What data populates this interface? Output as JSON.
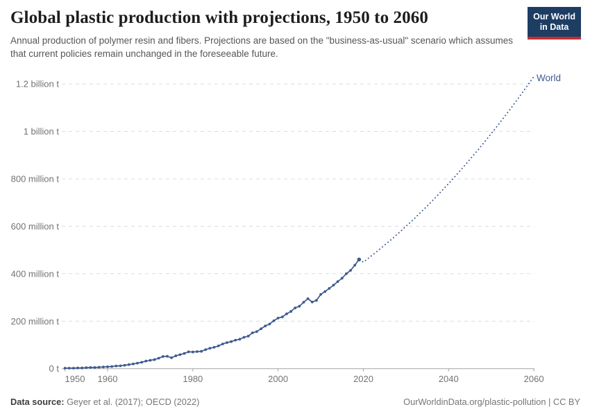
{
  "header": {
    "title": "Global plastic production with projections, 1950 to 2060",
    "subtitle": "Annual production of polymer resin and fibers. Projections are based on the \"business-as-usual\" scenario which assumes that current policies remain unchanged in the foreseeable future.",
    "logo_line1": "Our World",
    "logo_line2": "in Data"
  },
  "footer": {
    "source_label": "Data source:",
    "source_value": "Geyer et al. (2017); OECD (2022)",
    "url": "OurWorldinData.org/plastic-pollution",
    "separator": " | ",
    "license": "CC BY"
  },
  "colors": {
    "accent_blue": "#3d5a8e",
    "grid": "#dcdcdc",
    "axis": "#a3a3a3",
    "tick_text": "#737373",
    "logo_bg": "#1d3d63",
    "logo_red": "#c52e35"
  },
  "chart_data": {
    "type": "line",
    "title": "Global plastic production with projections, 1950 to 2060",
    "unit": "million tonnes",
    "series_label": "World",
    "x_range": [
      1950,
      2060
    ],
    "ylim": [
      0,
      1231
    ],
    "grid": true,
    "legend_position": "end-of-line",
    "xticks": [
      {
        "value": 1950,
        "label": "1950"
      },
      {
        "value": 1960,
        "label": "1960"
      },
      {
        "value": 1980,
        "label": "1980"
      },
      {
        "value": 2000,
        "label": "2000"
      },
      {
        "value": 2020,
        "label": "2020"
      },
      {
        "value": 2040,
        "label": "2040"
      },
      {
        "value": 2060,
        "label": "2060"
      }
    ],
    "yticks": [
      {
        "value": 0,
        "label": "0 t"
      },
      {
        "value": 200,
        "label": "200 million t"
      },
      {
        "value": 400,
        "label": "400 million t"
      },
      {
        "value": 600,
        "label": "600 million t"
      },
      {
        "value": 800,
        "label": "800 million t"
      },
      {
        "value": 1000,
        "label": "1 billion t"
      },
      {
        "value": 1200,
        "label": "1.2 billion t"
      }
    ],
    "series": [
      {
        "name": "World (historical production)",
        "style": "solid",
        "points": [
          [
            1950,
            2
          ],
          [
            1951,
            2
          ],
          [
            1952,
            2
          ],
          [
            1953,
            3
          ],
          [
            1954,
            3
          ],
          [
            1955,
            4
          ],
          [
            1956,
            5
          ],
          [
            1957,
            5
          ],
          [
            1958,
            6
          ],
          [
            1959,
            7
          ],
          [
            1960,
            8
          ],
          [
            1961,
            9
          ],
          [
            1962,
            11
          ],
          [
            1963,
            12
          ],
          [
            1964,
            14
          ],
          [
            1965,
            17
          ],
          [
            1966,
            20
          ],
          [
            1967,
            23
          ],
          [
            1968,
            27
          ],
          [
            1969,
            32
          ],
          [
            1970,
            35
          ],
          [
            1971,
            38
          ],
          [
            1972,
            44
          ],
          [
            1973,
            51
          ],
          [
            1974,
            52
          ],
          [
            1975,
            46
          ],
          [
            1976,
            54
          ],
          [
            1977,
            59
          ],
          [
            1978,
            64
          ],
          [
            1979,
            71
          ],
          [
            1980,
            70
          ],
          [
            1981,
            72
          ],
          [
            1982,
            73
          ],
          [
            1983,
            80
          ],
          [
            1984,
            86
          ],
          [
            1985,
            90
          ],
          [
            1986,
            96
          ],
          [
            1987,
            104
          ],
          [
            1988,
            110
          ],
          [
            1989,
            114
          ],
          [
            1990,
            120
          ],
          [
            1991,
            124
          ],
          [
            1992,
            132
          ],
          [
            1993,
            137
          ],
          [
            1994,
            151
          ],
          [
            1995,
            156
          ],
          [
            1996,
            168
          ],
          [
            1997,
            180
          ],
          [
            1998,
            188
          ],
          [
            1999,
            202
          ],
          [
            2000,
            213
          ],
          [
            2001,
            218
          ],
          [
            2002,
            231
          ],
          [
            2003,
            241
          ],
          [
            2004,
            256
          ],
          [
            2005,
            263
          ],
          [
            2006,
            280
          ],
          [
            2007,
            295
          ],
          [
            2008,
            281
          ],
          [
            2009,
            288
          ],
          [
            2010,
            313
          ],
          [
            2011,
            325
          ],
          [
            2012,
            338
          ],
          [
            2013,
            352
          ],
          [
            2014,
            367
          ],
          [
            2015,
            381
          ],
          [
            2016,
            400
          ],
          [
            2017,
            414
          ],
          [
            2018,
            436
          ],
          [
            2019,
            460
          ]
        ]
      },
      {
        "name": "World (business-as-usual projection)",
        "style": "dotted",
        "points": [
          [
            2019,
            460
          ],
          [
            2020,
            449
          ],
          [
            2021,
            463
          ],
          [
            2022,
            477
          ],
          [
            2023,
            491
          ],
          [
            2024,
            506
          ],
          [
            2025,
            521
          ],
          [
            2026,
            536
          ],
          [
            2027,
            551
          ],
          [
            2028,
            567
          ],
          [
            2029,
            583
          ],
          [
            2030,
            600
          ],
          [
            2031,
            616
          ],
          [
            2032,
            633
          ],
          [
            2033,
            651
          ],
          [
            2034,
            668
          ],
          [
            2035,
            686
          ],
          [
            2036,
            704
          ],
          [
            2037,
            723
          ],
          [
            2038,
            742
          ],
          [
            2039,
            761
          ],
          [
            2040,
            780
          ],
          [
            2041,
            800
          ],
          [
            2042,
            820
          ],
          [
            2043,
            840
          ],
          [
            2044,
            861
          ],
          [
            2045,
            882
          ],
          [
            2046,
            903
          ],
          [
            2047,
            924
          ],
          [
            2048,
            946
          ],
          [
            2049,
            968
          ],
          [
            2050,
            991
          ],
          [
            2051,
            1013
          ],
          [
            2052,
            1036
          ],
          [
            2053,
            1060
          ],
          [
            2054,
            1083
          ],
          [
            2055,
            1107
          ],
          [
            2056,
            1131
          ],
          [
            2057,
            1156
          ],
          [
            2058,
            1181
          ],
          [
            2059,
            1206
          ],
          [
            2060,
            1231
          ]
        ]
      }
    ]
  }
}
